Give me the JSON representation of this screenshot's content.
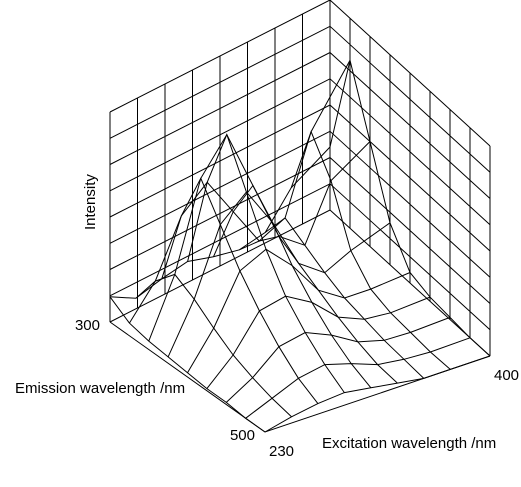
{
  "chart_data": {
    "type": "surface3d",
    "x_label": "Excitation wavelength /nm",
    "y_label": "Emission wavelength /nm",
    "z_label": "Intensity",
    "excitation": [
      230,
      250,
      270,
      290,
      310,
      330,
      350,
      370,
      400
    ],
    "emission": [
      300,
      325,
      350,
      375,
      400,
      425,
      450,
      475,
      500
    ],
    "z": [
      [
        12,
        5,
        8,
        10,
        6,
        3,
        5,
        20,
        30
      ],
      [
        6,
        20,
        45,
        55,
        35,
        15,
        20,
        55,
        80
      ],
      [
        4,
        30,
        70,
        85,
        55,
        25,
        15,
        40,
        50
      ],
      [
        3,
        25,
        55,
        65,
        45,
        20,
        10,
        15,
        20
      ],
      [
        2,
        18,
        40,
        45,
        32,
        15,
        6,
        5,
        5
      ],
      [
        1,
        12,
        28,
        30,
        22,
        10,
        4,
        2,
        2
      ],
      [
        1,
        8,
        18,
        20,
        14,
        6,
        2,
        1,
        1
      ],
      [
        0,
        5,
        10,
        12,
        8,
        3,
        1,
        0,
        0
      ],
      [
        0,
        3,
        5,
        6,
        4,
        2,
        0,
        0,
        0
      ]
    ],
    "xlim": [
      230,
      400
    ],
    "xticks": [
      230,
      400
    ],
    "ylim": [
      300,
      500
    ],
    "yticks": [
      300,
      500
    ],
    "zlim": [
      0,
      100
    ],
    "color": "#000000"
  }
}
